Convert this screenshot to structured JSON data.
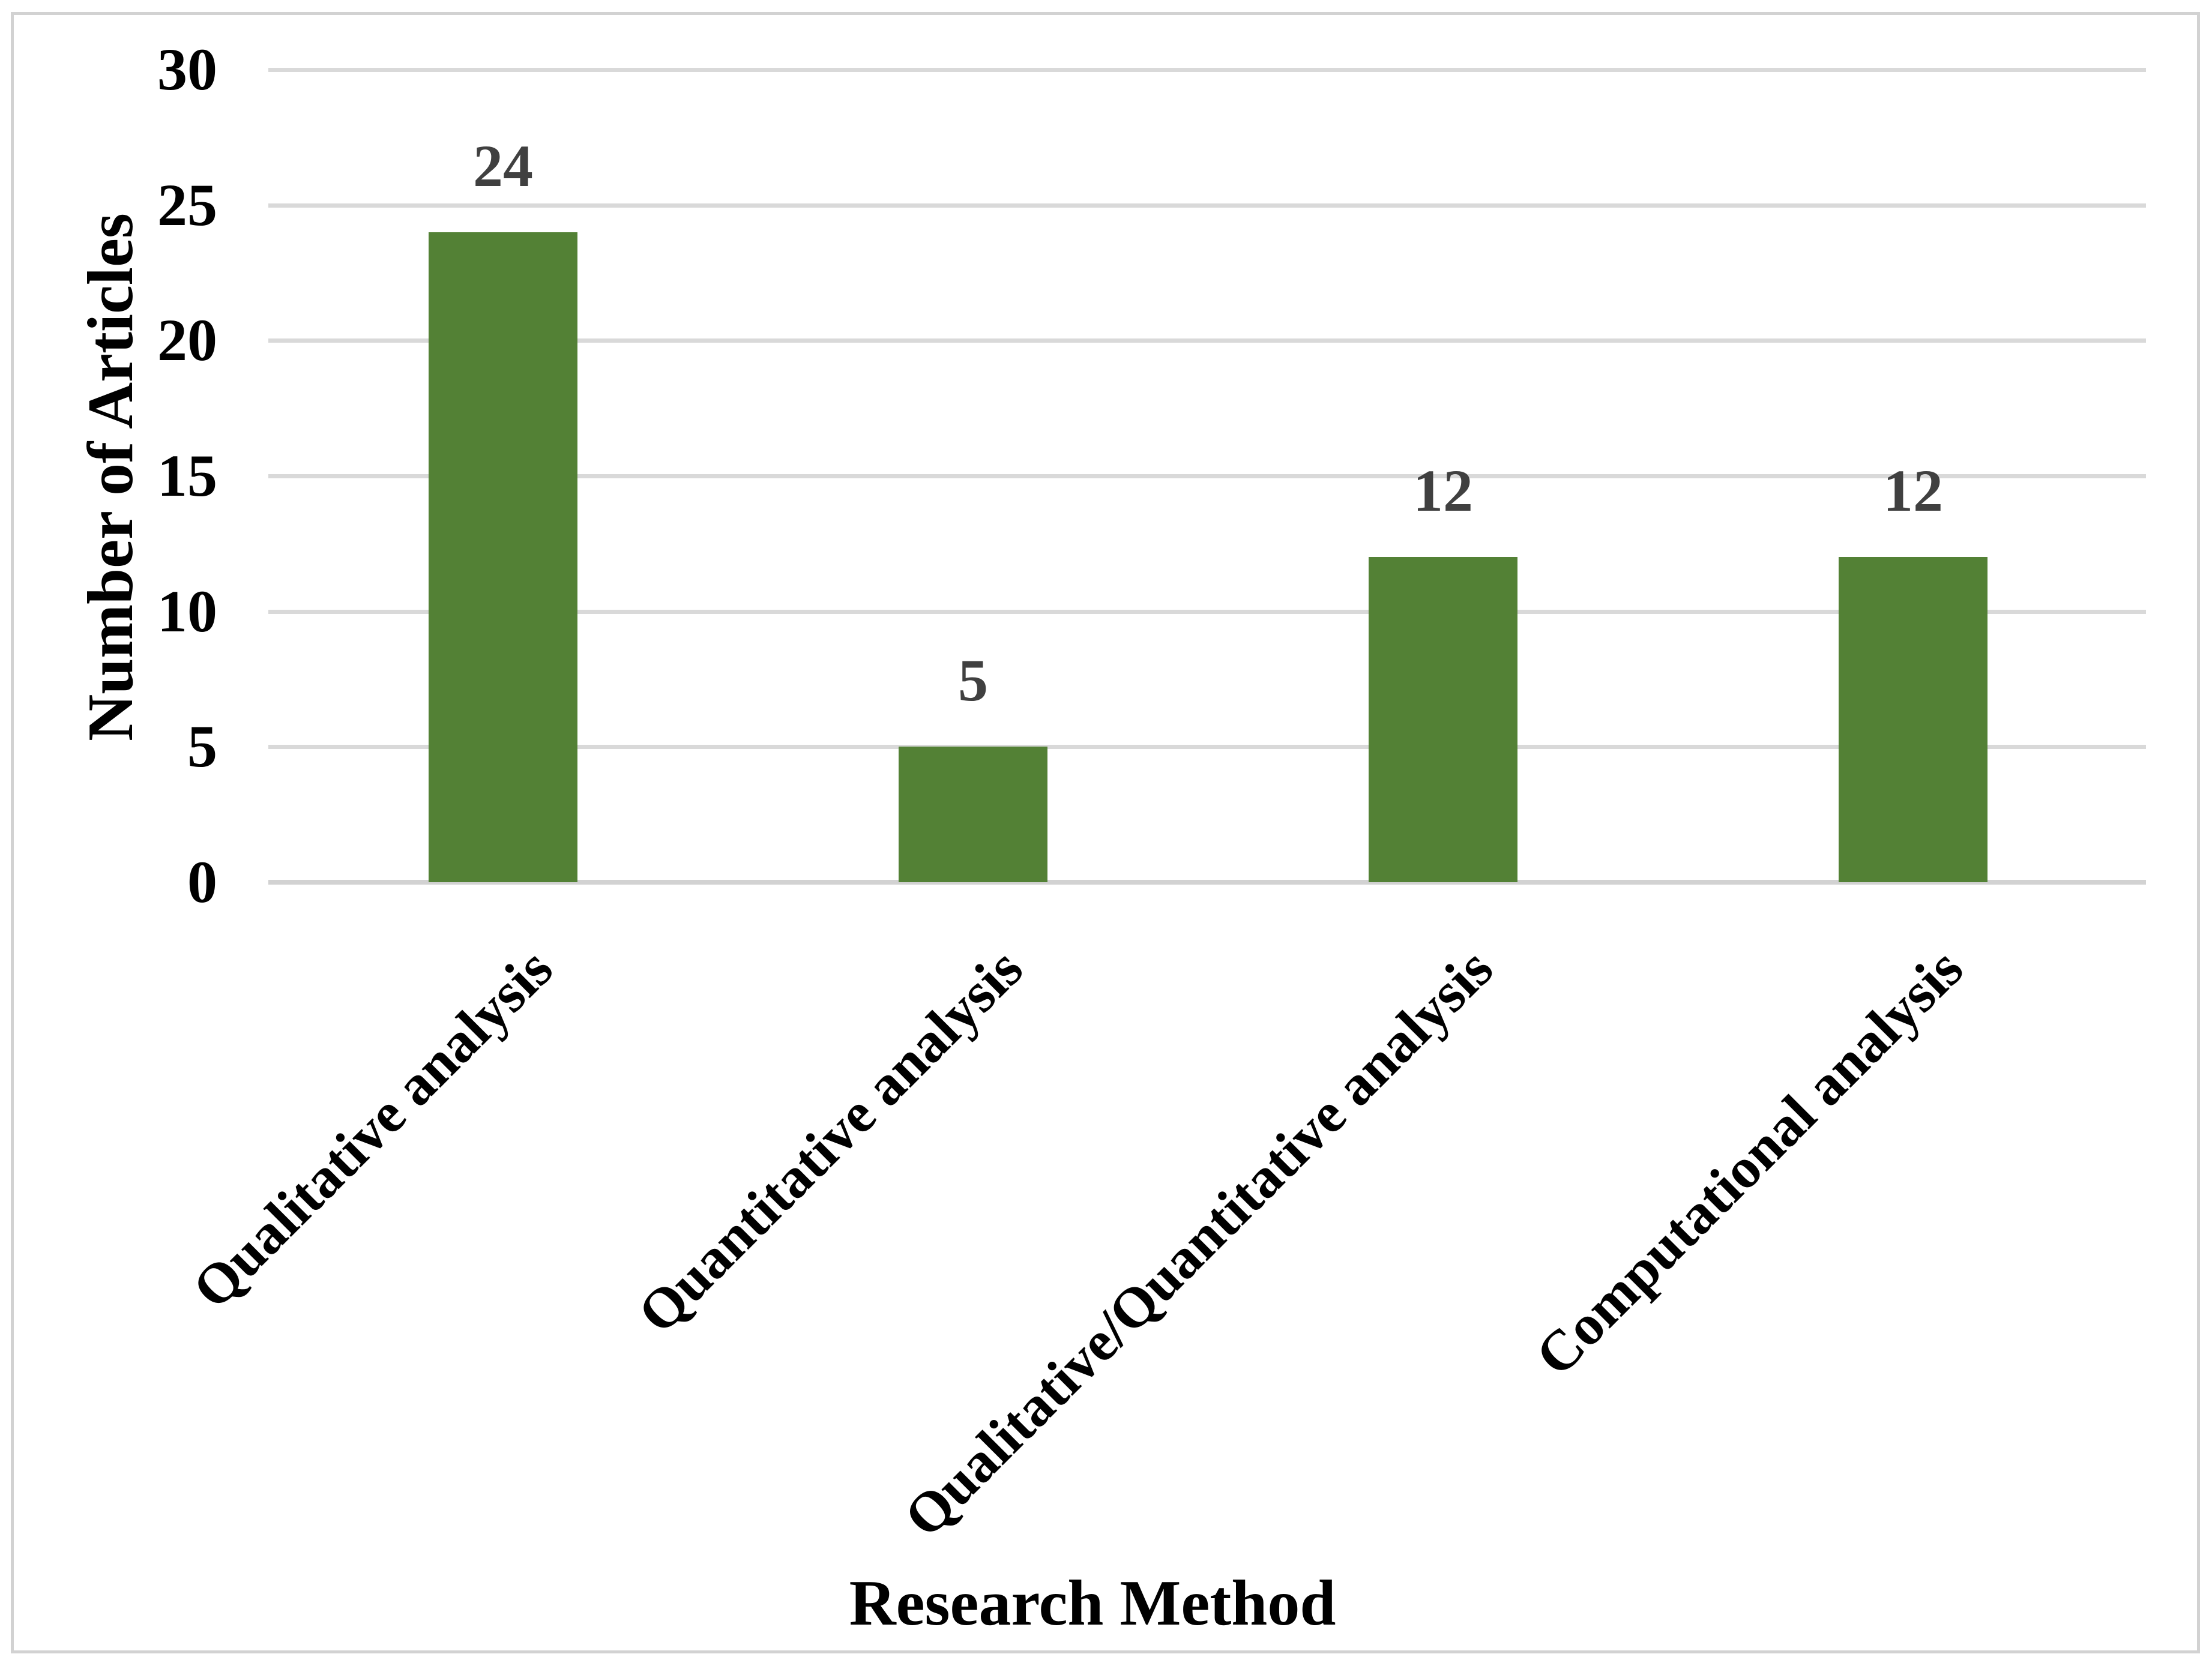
{
  "chart_data": {
    "type": "bar",
    "categories": [
      "Qualitative analysis",
      "Quantitative analysis",
      "Qualitative/Quantitative analysis",
      "Computational analysis"
    ],
    "values": [
      24,
      5,
      12,
      12
    ],
    "data_labels": [
      "24",
      "5",
      "12",
      "12"
    ],
    "title": "",
    "xlabel": "Research Method",
    "ylabel": "Number of Articles",
    "ylim": [
      0,
      30
    ],
    "ytick_step": 5,
    "yticks_top_to_bottom": [
      "30",
      "25",
      "20",
      "15",
      "10",
      "5",
      "0"
    ],
    "grid": "horizontal gridlines on",
    "legend": "none",
    "colors": {
      "bar_fill": "#538135",
      "data_label_text": "#404040",
      "axis_text": "#000000",
      "gridline": "#d9d9d9",
      "frame_border": "#d2d2d2",
      "background": "#ffffff"
    }
  }
}
